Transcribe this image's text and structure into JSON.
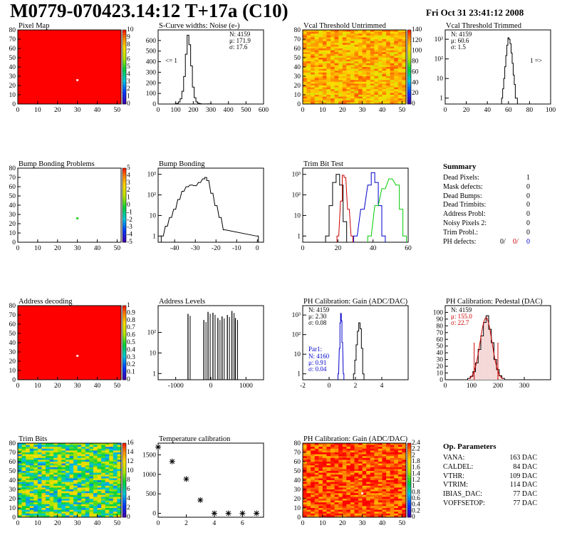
{
  "header": {
    "title": "M0779-070423.14:12 T+17a (C10)",
    "datetime": "Fri Oct 31 23:41:12 2008"
  },
  "colors": {
    "frame": "#000000",
    "map_fill": "#ff0000",
    "map_hot_pixel": "#ffffff",
    "series_black": "#000000",
    "series_red": "#cc0000",
    "series_blue": "#0000cc",
    "series_green": "#00cc00",
    "fit_red": "#cc0000",
    "stat_blue": "#0000cc"
  },
  "chart_data": [
    {
      "id": "pixel_map",
      "type": "heatmap",
      "title": "Pixel Map",
      "xlim": [
        0,
        52
      ],
      "ylim": [
        0,
        80
      ],
      "xticks": [
        "0",
        "10",
        "20",
        "30",
        "40",
        "50"
      ],
      "yticks": [
        "0",
        "10",
        "20",
        "30",
        "40",
        "50",
        "60",
        "70",
        "80"
      ],
      "zticks": [
        "0",
        "1",
        "2",
        "3",
        "4",
        "5",
        "6",
        "7",
        "8",
        "9",
        "10"
      ],
      "fill": "uniform red",
      "hot_pixels": [
        {
          "x": 30,
          "y": 26,
          "color": "white"
        }
      ]
    },
    {
      "id": "scurve_noise",
      "type": "histogram",
      "title": "S-Curve widths: Noise (e-)",
      "xlim": [
        0,
        600
      ],
      "ylim": [
        0,
        700
      ],
      "xticks": [
        "0",
        "100",
        "200",
        "300",
        "400",
        "500",
        "600"
      ],
      "yticks": [
        "0",
        "100",
        "200",
        "300",
        "400",
        "500",
        "600"
      ],
      "stats": [
        "N: 4159",
        "μ: 171.9",
        "σ: 17.6"
      ],
      "underflow_label": "<= 1",
      "series": [
        {
          "name": "noise",
          "color": "black",
          "x": [
            100,
            110,
            120,
            130,
            140,
            150,
            160,
            170,
            180,
            190,
            200,
            210,
            220,
            230,
            240,
            250,
            260,
            300
          ],
          "y": [
            2,
            6,
            20,
            50,
            120,
            260,
            470,
            650,
            560,
            360,
            160,
            60,
            20,
            8,
            3,
            1,
            1,
            2
          ]
        }
      ]
    },
    {
      "id": "vcal_untrimmed",
      "type": "heatmap",
      "title": "Vcal Threshold Untrimmed",
      "xlim": [
        0,
        52
      ],
      "ylim": [
        0,
        80
      ],
      "xticks": [
        "0",
        "10",
        "20",
        "30",
        "40",
        "50"
      ],
      "yticks": [
        "0",
        "10",
        "20",
        "30",
        "40",
        "50",
        "60",
        "70",
        "80"
      ],
      "zticks": [
        "0",
        "20",
        "40",
        "60",
        "80",
        "100",
        "120",
        "140"
      ],
      "fill": "noisy orange/yellow"
    },
    {
      "id": "vcal_trimmed",
      "type": "histogram",
      "title": "Vcal Threshold Trimmed",
      "log_y": true,
      "xlim": [
        0,
        100
      ],
      "ylim": [
        0.5,
        3000
      ],
      "xticks": [
        "0",
        "20",
        "40",
        "60",
        "80",
        "100"
      ],
      "yticks": [
        "1",
        "10",
        "10²",
        "10³"
      ],
      "stats": [
        "N: 4159",
        "μ: 60.6",
        "σ:  1.5"
      ],
      "overflow_label": "1 =>",
      "series": [
        {
          "name": "trimmed",
          "color": "black",
          "x": [
            54,
            55,
            56,
            57,
            58,
            59,
            60,
            61,
            62,
            63,
            64,
            65,
            66,
            67,
            68
          ],
          "y": [
            1,
            3,
            10,
            40,
            150,
            500,
            1200,
            1000,
            600,
            200,
            60,
            15,
            5,
            1,
            1
          ]
        }
      ]
    },
    {
      "id": "bump_bonding_problems",
      "type": "heatmap",
      "title": "Bump Bonding Problems",
      "xlim": [
        0,
        52
      ],
      "ylim": [
        0,
        80
      ],
      "xticks": [
        "0",
        "10",
        "20",
        "30",
        "40",
        "50"
      ],
      "yticks": [
        "0",
        "10",
        "20",
        "30",
        "40",
        "50",
        "60",
        "70",
        "80"
      ],
      "zticks": [
        "-5",
        "-4",
        "-3",
        "-2",
        "-1",
        "0",
        "1",
        "2",
        "3",
        "4",
        "5"
      ],
      "fill": "white",
      "hot_pixels": [
        {
          "x": 30,
          "y": 26,
          "color": "green"
        }
      ]
    },
    {
      "id": "bump_bonding",
      "type": "histogram",
      "title": "Bump Bonding",
      "log_y": true,
      "xlim": [
        -48,
        3
      ],
      "ylim": [
        0.5,
        2000
      ],
      "xticks": [
        "-40",
        "-30",
        "-20",
        "-10",
        "0"
      ],
      "yticks": [
        "1",
        "10",
        "10²",
        "10³"
      ],
      "series": [
        {
          "name": "bump",
          "color": "black",
          "x": [
            -46,
            -44,
            -42,
            -40,
            -38,
            -36,
            -34,
            -32,
            -30,
            -28,
            -26,
            -25,
            -24,
            -22,
            -20,
            -18,
            -16,
            0
          ],
          "y": [
            1,
            3,
            8,
            20,
            60,
            150,
            250,
            300,
            280,
            400,
            600,
            700,
            500,
            120,
            30,
            8,
            2,
            1
          ]
        }
      ]
    },
    {
      "id": "trim_bit_test",
      "type": "histogram",
      "title": "Trim Bit Test",
      "log_y": true,
      "xlim": [
        0,
        60
      ],
      "ylim": [
        0.5,
        2000
      ],
      "xticks": [
        "0",
        "20",
        "40",
        "60"
      ],
      "yticks": [
        "1",
        "10",
        "10²",
        "10³"
      ],
      "series": [
        {
          "name": "trim0",
          "color": "black",
          "x": [
            14,
            16,
            18,
            20,
            22,
            24
          ],
          "y": [
            1,
            30,
            400,
            1000,
            300,
            5
          ]
        },
        {
          "name": "trim1",
          "color": "red",
          "x": [
            20,
            22,
            23,
            24,
            26,
            28
          ],
          "y": [
            1,
            50,
            900,
            700,
            20,
            1
          ]
        },
        {
          "name": "trim2",
          "color": "blue",
          "x": [
            30,
            34,
            38,
            40,
            42,
            44,
            46
          ],
          "y": [
            1,
            20,
            300,
            1200,
            400,
            30,
            1
          ]
        },
        {
          "name": "trim3",
          "color": "green",
          "x": [
            38,
            42,
            46,
            50,
            54,
            56,
            58
          ],
          "y": [
            1,
            30,
            200,
            600,
            300,
            20,
            1
          ]
        }
      ]
    },
    {
      "id": "address_decoding",
      "type": "heatmap",
      "title": "Address decoding",
      "xlim": [
        0,
        52
      ],
      "ylim": [
        0,
        80
      ],
      "xticks": [
        "0",
        "10",
        "20",
        "30",
        "40",
        "50"
      ],
      "yticks": [
        "0",
        "10",
        "20",
        "30",
        "40",
        "50",
        "60",
        "70",
        "80"
      ],
      "zticks": [
        "0",
        "0.1",
        "0.2",
        "0.3",
        "0.4",
        "0.5",
        "0.6",
        "0.7",
        "0.8",
        "0.9",
        "1"
      ],
      "fill": "uniform red",
      "hot_pixels": [
        {
          "x": 30,
          "y": 26,
          "color": "white"
        }
      ]
    },
    {
      "id": "address_levels",
      "type": "histogram",
      "title": "Address Levels",
      "log_y": true,
      "xlim": [
        -1500,
        1500
      ],
      "ylim": [
        0.5,
        2000
      ],
      "xticks": [
        "-1000",
        "0",
        "1000"
      ],
      "yticks": [
        "1",
        "10",
        "10²"
      ],
      "series": [
        {
          "name": "levels",
          "color": "black",
          "x": [
            -650,
            -200,
            -80,
            60,
            200,
            320,
            470,
            600,
            700
          ],
          "y": [
            800,
            400,
            1000,
            900,
            500,
            600,
            700,
            1100,
            500
          ]
        }
      ]
    },
    {
      "id": "ph_gain",
      "type": "histogram",
      "title": "PH Calibration: Gain (ADC/DAC)",
      "log_y": true,
      "xlim": [
        -2,
        6
      ],
      "ylim": [
        0.5,
        3000
      ],
      "xticks": [
        "-2",
        "0",
        "2",
        "4"
      ],
      "yticks": [
        "1",
        "10",
        "10²",
        "10³"
      ],
      "stats": [
        "N: 4159",
        "μ: 2.30",
        "σ: 0.08"
      ],
      "stats2_title": "Par1:",
      "stats2": [
        "N: 4160",
        "μ: 0.91",
        "σ: 0.04"
      ],
      "series": [
        {
          "name": "gain",
          "color": "black",
          "x": [
            1.9,
            2.0,
            2.1,
            2.2,
            2.3,
            2.4,
            2.5,
            2.6
          ],
          "y": [
            1,
            5,
            30,
            150,
            400,
            200,
            20,
            1
          ]
        },
        {
          "name": "par1",
          "color": "blue",
          "x": [
            0.7,
            0.8,
            0.85,
            0.9,
            0.95,
            1.0,
            1.1
          ],
          "y": [
            1,
            20,
            400,
            1200,
            500,
            40,
            1
          ]
        }
      ]
    },
    {
      "id": "ph_pedestal",
      "type": "histogram",
      "title": "PH Calibration: Pedestal (DAC)",
      "xlim": [
        0,
        400
      ],
      "ylim": [
        0,
        110
      ],
      "xticks": [
        "0",
        "100",
        "200",
        "300"
      ],
      "yticks": [
        "0",
        "10",
        "20",
        "30",
        "40",
        "50",
        "60",
        "70",
        "80",
        "90",
        "100"
      ],
      "stats": [
        "N: 4159",
        "μ: 155.0",
        "σ: 22.7"
      ],
      "series": [
        {
          "name": "pedestal",
          "color": "black",
          "x": [
            90,
            100,
            110,
            120,
            130,
            140,
            150,
            160,
            170,
            180,
            190,
            200,
            210,
            220
          ],
          "y": [
            2,
            5,
            12,
            25,
            45,
            65,
            85,
            95,
            75,
            55,
            30,
            15,
            6,
            2
          ]
        }
      ]
    },
    {
      "id": "trim_bits",
      "type": "heatmap",
      "title": "Trim Bits",
      "xlim": [
        0,
        52
      ],
      "ylim": [
        0,
        80
      ],
      "xticks": [
        "0",
        "10",
        "20",
        "30",
        "40",
        "50"
      ],
      "yticks": [
        "0",
        "10",
        "20",
        "30",
        "40",
        "50",
        "60",
        "70",
        "80"
      ],
      "zticks": [
        "0",
        "2",
        "4",
        "6",
        "8",
        "10",
        "12",
        "14",
        "16"
      ],
      "fill": "noisy green"
    },
    {
      "id": "temperature_calibration",
      "type": "scatter",
      "title": "Temperature calibration",
      "xlim": [
        0,
        7.5
      ],
      "ylim": [
        -100,
        1800
      ],
      "xticks": [
        "0",
        "2",
        "4",
        "6"
      ],
      "yticks": [
        "0",
        "500",
        "1000",
        "1500"
      ],
      "series": [
        {
          "name": "temp",
          "color": "black",
          "x": [
            0,
            1,
            2,
            3,
            4,
            5,
            6,
            7
          ],
          "y": [
            1700,
            1330,
            880,
            340,
            0,
            0,
            0,
            0
          ]
        }
      ]
    },
    {
      "id": "ph_gain_map",
      "type": "heatmap",
      "title": "PH Calibration: Gain (ADC/DAC)",
      "xlim": [
        0,
        52
      ],
      "ylim": [
        0,
        80
      ],
      "xticks": [
        "0",
        "10",
        "20",
        "30",
        "40",
        "50"
      ],
      "yticks": [
        "0",
        "10",
        "20",
        "30",
        "40",
        "50",
        "60",
        "70",
        "80"
      ],
      "zticks": [
        "0",
        "0.2",
        "0.4",
        "0.6",
        "0.8",
        "1",
        "1.2",
        "1.4",
        "1.6",
        "1.8",
        "2",
        "2.2",
        "2.4"
      ],
      "fill": "noisy red/orange",
      "hot_pixels": [
        {
          "x": 30,
          "y": 26,
          "color": "white"
        }
      ]
    }
  ],
  "summary": {
    "title": "Summary",
    "rows": [
      {
        "label": "Dead Pixels:",
        "value": "1"
      },
      {
        "label": "Mask defects:",
        "value": "0"
      },
      {
        "label": "Dead Bumps:",
        "value": "0"
      },
      {
        "label": "Dead Trimbits:",
        "value": "0"
      },
      {
        "label": "Address Probl:",
        "value": "0"
      },
      {
        "label": "Noisy Pixels 2:",
        "value": "0"
      },
      {
        "label": "Trim Probl.:",
        "value": "0"
      }
    ],
    "ph_defects": {
      "label": "PH defects:",
      "v1": "0/",
      "v2": "0/",
      "v3": "0"
    }
  },
  "op_params": {
    "title": "Op. Parameters",
    "rows": [
      {
        "label": "VANA:",
        "value": "163 DAC"
      },
      {
        "label": "CALDEL:",
        "value": "84 DAC"
      },
      {
        "label": "VTHR:",
        "value": "109 DAC"
      },
      {
        "label": "VTRIM:",
        "value": "114 DAC"
      },
      {
        "label": "IBIAS_DAC:",
        "value": "77 DAC"
      },
      {
        "label": "VOFFSETOP:",
        "value": "77 DAC"
      }
    ]
  }
}
